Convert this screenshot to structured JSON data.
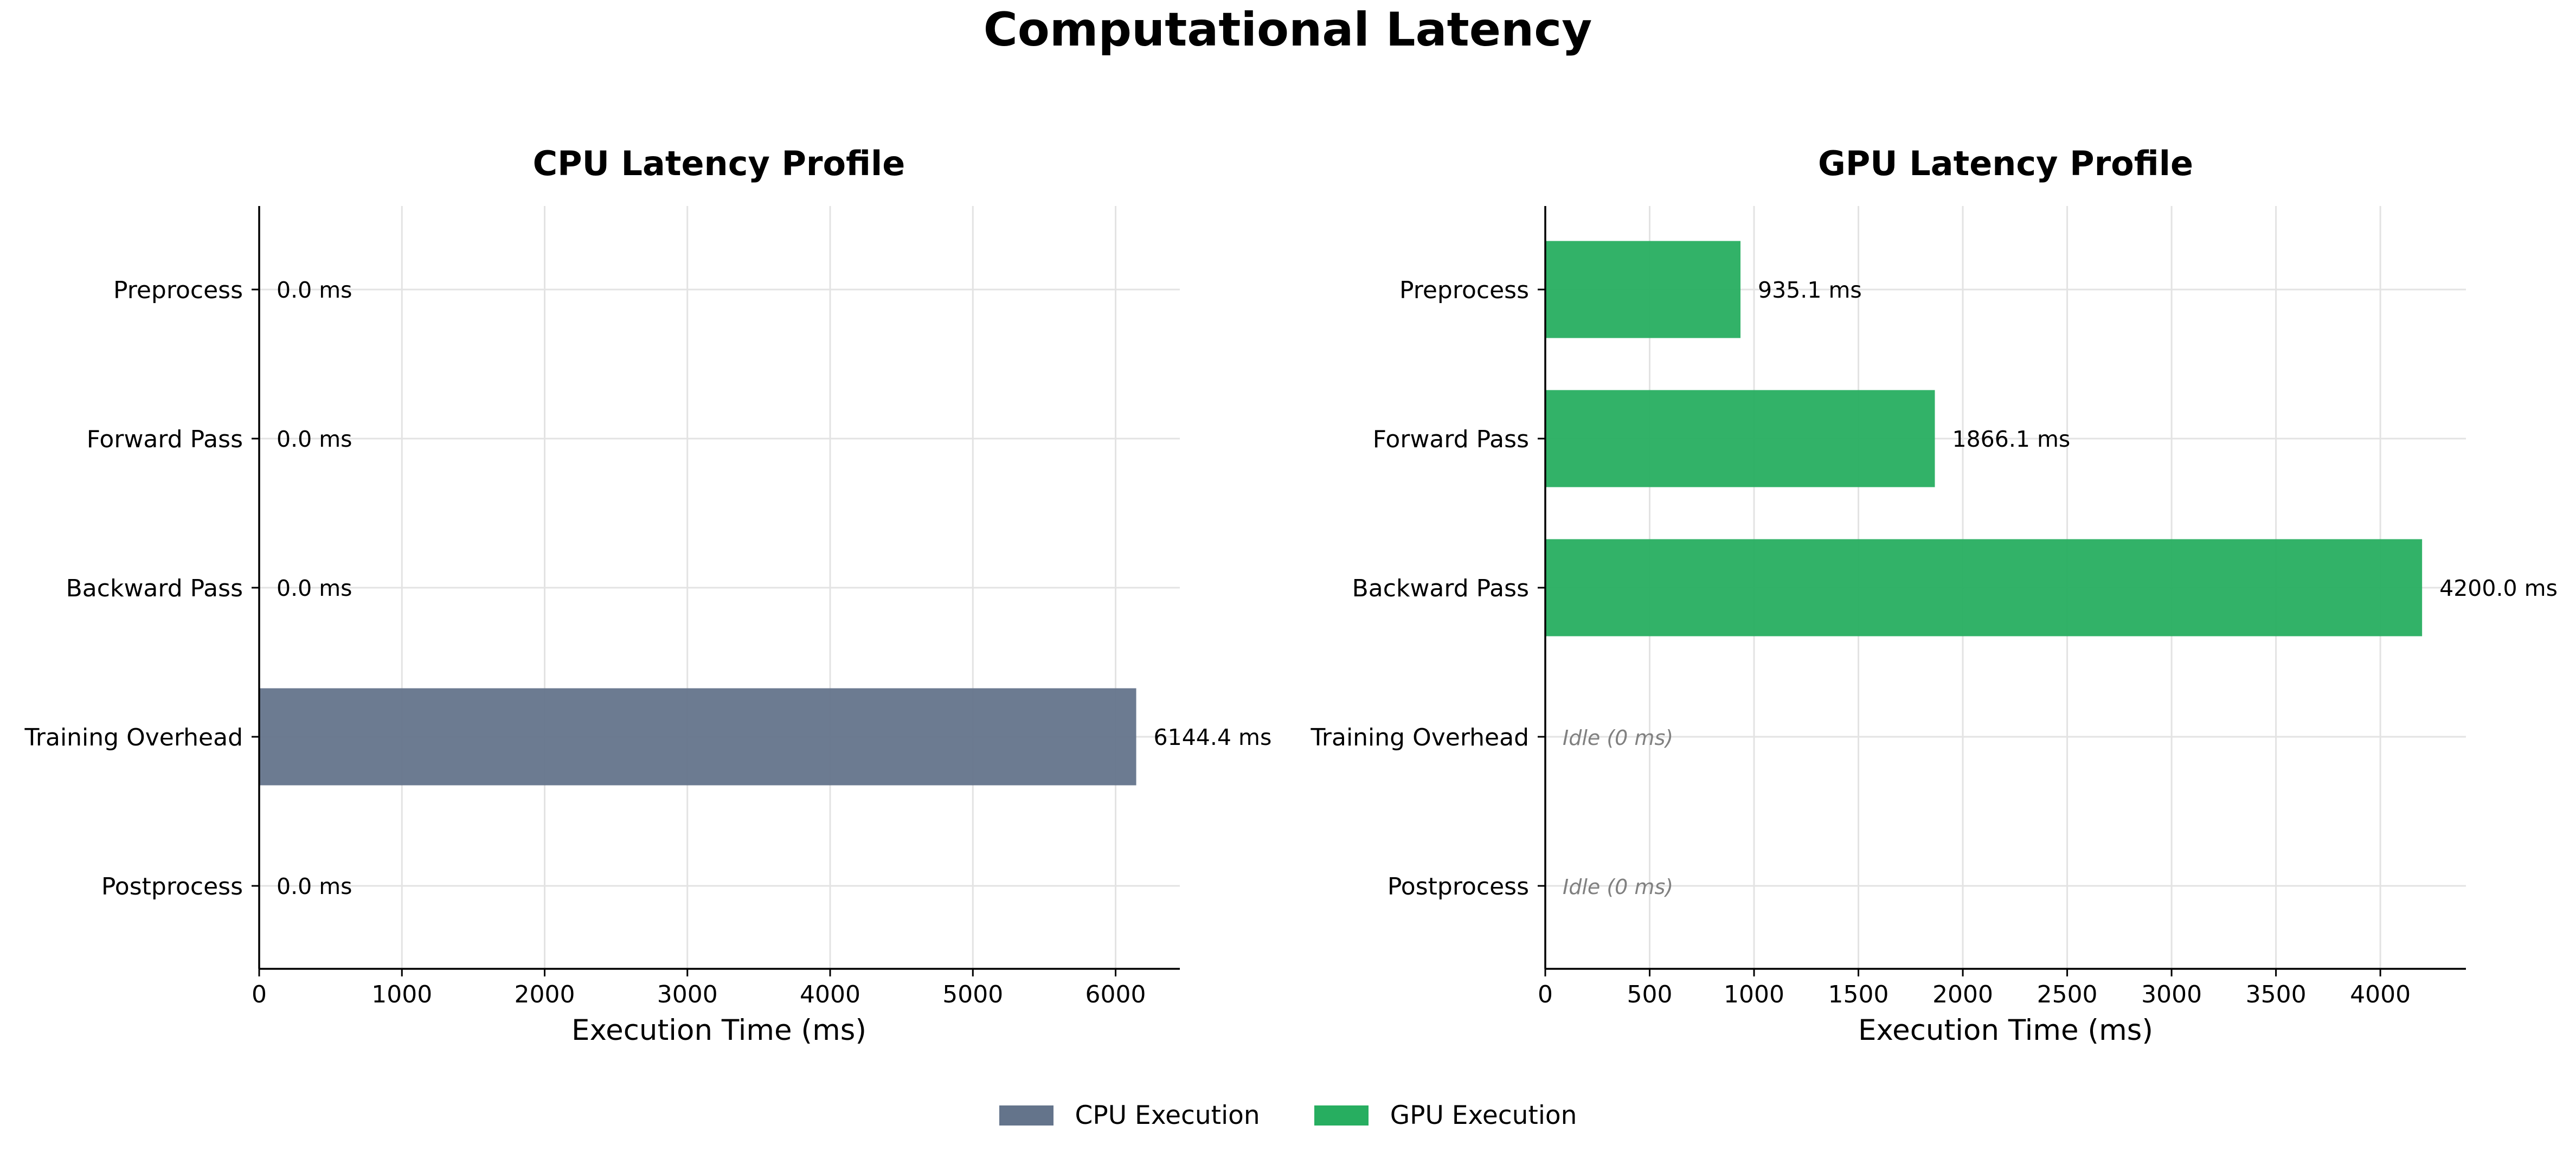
{
  "figure": {
    "title": "Computational Latency"
  },
  "colors": {
    "cpu": "#64748B",
    "gpu": "#27AE60",
    "grid": "#E3E3E3",
    "idle_text": "#808080"
  },
  "legend": {
    "items": [
      {
        "label": "CPU Execution",
        "color": "#64748B"
      },
      {
        "label": "GPU Execution",
        "color": "#27AE60"
      }
    ],
    "placement": "bottom-center"
  },
  "chart_data": [
    {
      "type": "bar",
      "orientation": "horizontal",
      "title": "CPU Latency Profile",
      "xlabel": "Execution Time (ms)",
      "ylabel": "",
      "categories": [
        "Preprocess",
        "Forward Pass",
        "Backward Pass",
        "Training Overhead",
        "Postprocess"
      ],
      "values": [
        0.0,
        0.0,
        0.0,
        6144.4,
        0.0
      ],
      "data_labels": [
        "0.0 ms",
        "0.0 ms",
        "0.0 ms",
        "6144.4 ms",
        "0.0 ms"
      ],
      "xlim": [
        0,
        6450
      ],
      "xticks": [
        0,
        1000,
        2000,
        3000,
        4000,
        5000,
        6000
      ],
      "grid": true,
      "color": "#64748B"
    },
    {
      "type": "bar",
      "orientation": "horizontal",
      "title": "GPU Latency Profile",
      "xlabel": "Execution Time (ms)",
      "ylabel": "",
      "categories": [
        "Preprocess",
        "Forward Pass",
        "Backward Pass",
        "Training Overhead",
        "Postprocess"
      ],
      "values": [
        935.1,
        1866.1,
        4200.0,
        0,
        0
      ],
      "data_labels": [
        "935.1 ms",
        "1866.1 ms",
        "4200.0 ms",
        "Idle (0 ms)",
        "Idle (0 ms)"
      ],
      "xlim": [
        0,
        4410
      ],
      "xticks": [
        0,
        500,
        1000,
        1500,
        2000,
        2500,
        3000,
        3500,
        4000
      ],
      "grid": true,
      "color": "#27AE60"
    }
  ]
}
